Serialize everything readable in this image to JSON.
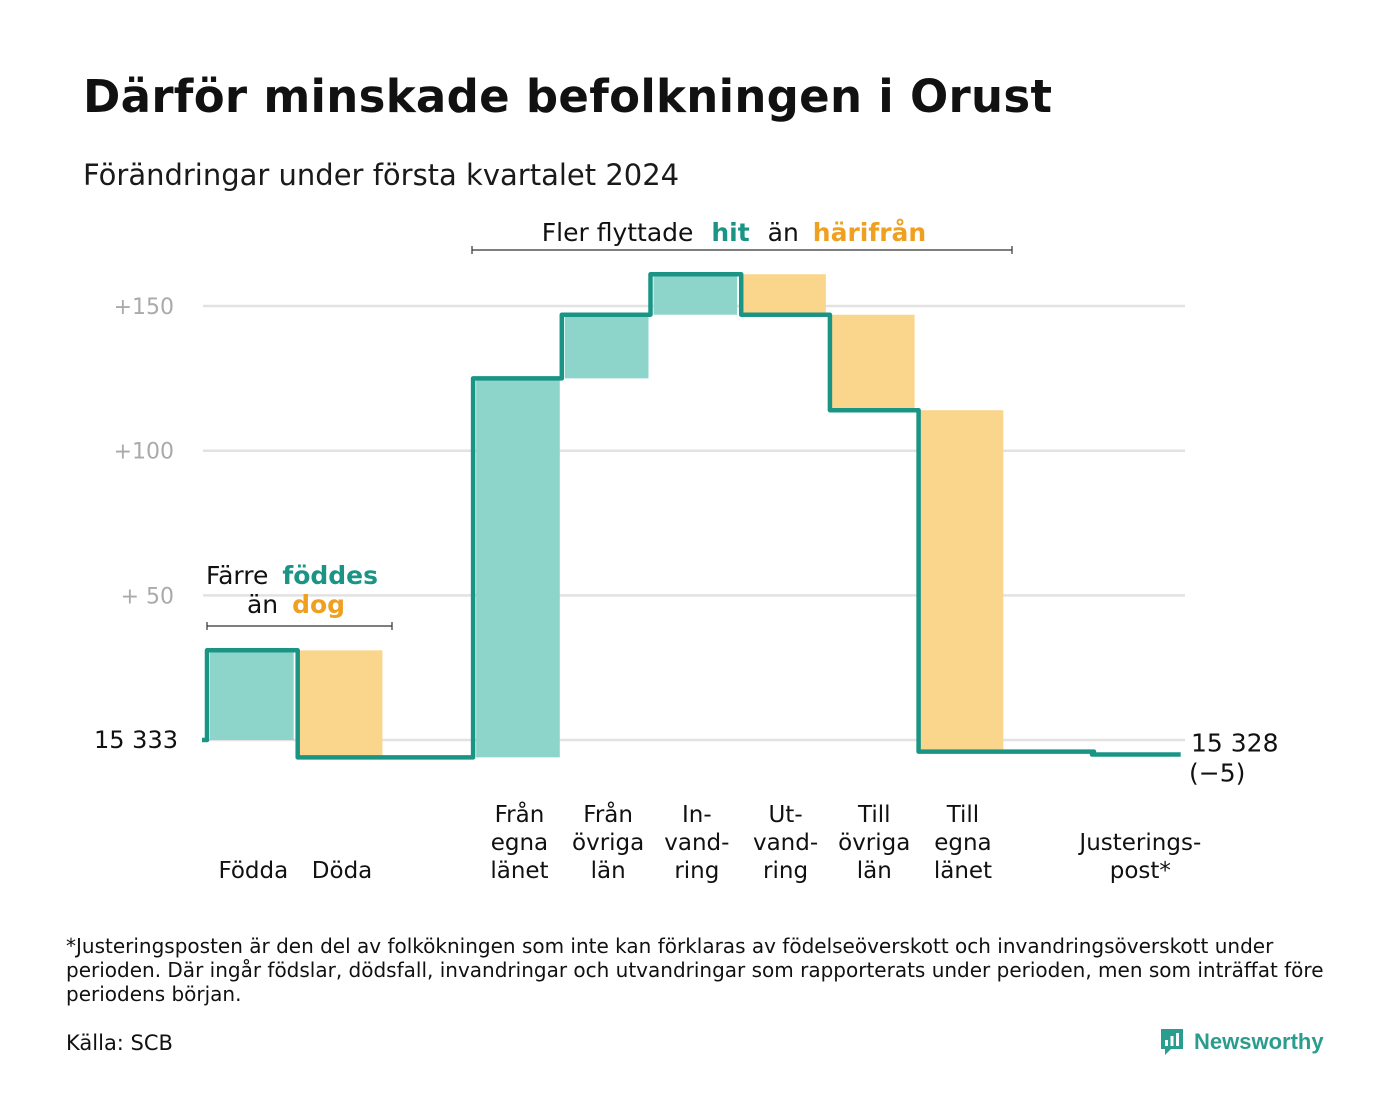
{
  "title": "Därför minskade befolkningen i Orust",
  "subtitle": "Förändringar under första kvartalet 2024",
  "footnote": "*Justeringsposten är den del av folkökningen som inte kan förklaras av födelseöverskott och invandringsöverskott under perioden. Där ingår födslar, dödsfall, invandringar och utvandringar som rapporterats under perioden, men som inträffat före periodens början.",
  "source": "Källa: SCB",
  "brand": "Newsworthy",
  "colors": {
    "increase_fill": "#8dd5cb",
    "decrease_fill": "#fad68d",
    "line": "#1a9585",
    "hit_text": "#1a9585",
    "harifran_text": "#f0a020",
    "grid": "#e2e2e2",
    "tick_text": "#aaaaaa"
  },
  "annotations": {
    "births": {
      "line1_plain": "Färre",
      "line1_colored": "föddes",
      "line2_plain": "än",
      "line2_colored": "dog"
    },
    "migration": {
      "plain1": "Fler flyttade",
      "colored1": "hit",
      "plain2": "än",
      "colored2": "härifrån"
    }
  },
  "chart_data": {
    "type": "waterfall",
    "title": "Därför minskade befolkningen i Orust",
    "subtitle": "Förändringar under första kvartalet 2024",
    "start_value": 15333,
    "start_label": "15  333",
    "end_value": 15328,
    "end_label": "15 328",
    "end_change_label": "(−5)",
    "yticks": [
      {
        "value": 150,
        "label": "+150"
      },
      {
        "value": 100,
        "label": "+100"
      },
      {
        "value": 50,
        "label": "+  50"
      }
    ],
    "ylim": [
      -12,
      160
    ],
    "grid": true,
    "steps": [
      {
        "category": [
          "Födda"
        ],
        "value": 31,
        "kind": "increase"
      },
      {
        "category": [
          "Döda"
        ],
        "value": -37,
        "kind": "decrease"
      },
      {
        "category": [],
        "value": 0,
        "kind": "gap"
      },
      {
        "category": [
          "Från",
          "egna",
          "länet"
        ],
        "value": 131,
        "kind": "increase"
      },
      {
        "category": [
          "Från",
          "övriga",
          "län"
        ],
        "value": 22,
        "kind": "increase"
      },
      {
        "category": [
          "In-",
          "vand-",
          "ring"
        ],
        "value": 14,
        "kind": "increase"
      },
      {
        "category": [
          "Ut-",
          "vand-",
          "ring"
        ],
        "value": -14,
        "kind": "decrease"
      },
      {
        "category": [
          "Till",
          "övriga",
          "län"
        ],
        "value": -33,
        "kind": "decrease"
      },
      {
        "category": [
          "Till",
          "egna",
          "länet"
        ],
        "value": -118,
        "kind": "decrease"
      },
      {
        "category": [],
        "value": 0,
        "kind": "gap"
      },
      {
        "category": [
          "Justerings-",
          "post*"
        ],
        "value": -1,
        "kind": "adjustment"
      }
    ]
  }
}
